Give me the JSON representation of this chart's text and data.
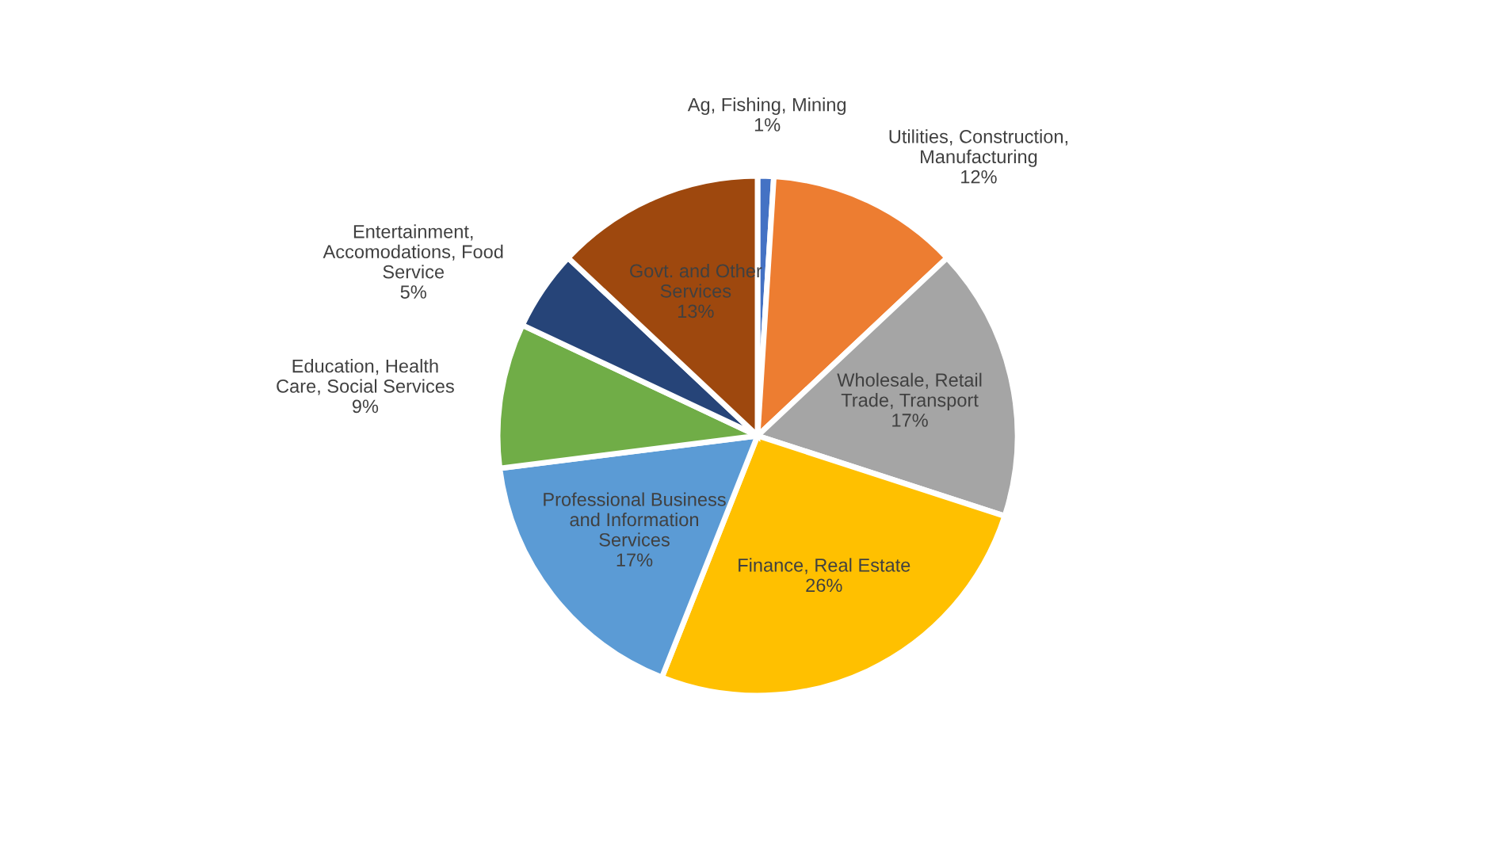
{
  "chart_data": {
    "type": "pie",
    "categories": [
      "Ag, Fishing, Mining",
      "Utilities, Construction,\nManufacturing",
      "Wholesale, Retail\nTrade, Transport",
      "Finance, Real Estate",
      "Professional Business\nand Information\nServices",
      "Education, Health\nCare, Social Services",
      "Entertainment,\nAccomodations, Food\nService",
      "Govt. and Other\nServices"
    ],
    "values": [
      1,
      12,
      17,
      26,
      17,
      9,
      5,
      13
    ],
    "colors": [
      "#4472c4",
      "#ed7d31",
      "#a5a5a5",
      "#ffc000",
      "#5b9bd5",
      "#70ad47",
      "#264478",
      "#9e480e"
    ],
    "value_labels": [
      "1%",
      "12%",
      "17%",
      "26%",
      "17%",
      "9%",
      "5%",
      "13%"
    ]
  }
}
